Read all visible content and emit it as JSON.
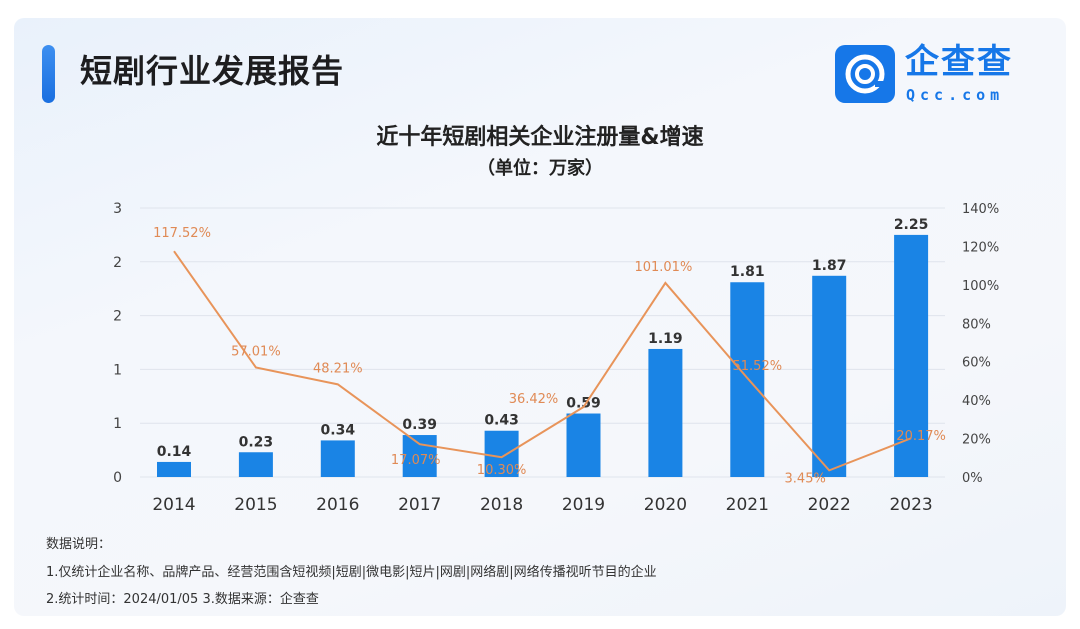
{
  "header": {
    "title": "短剧行业发展报告"
  },
  "logo": {
    "name": "企查查",
    "url": "Qcc.com"
  },
  "chart_data": {
    "type": "bar+line",
    "title": "近十年短剧相关企业注册量&增速",
    "subtitle": "（单位：万家）",
    "categories": [
      "2014",
      "2015",
      "2016",
      "2017",
      "2018",
      "2019",
      "2020",
      "2021",
      "2022",
      "2023"
    ],
    "series": [
      {
        "type": "bar",
        "axis": "left",
        "values": [
          0.14,
          0.23,
          0.34,
          0.39,
          0.43,
          0.59,
          1.19,
          1.81,
          1.87,
          2.25
        ],
        "color": "#1a84e5"
      },
      {
        "type": "line",
        "axis": "right",
        "values": [
          117.52,
          57.01,
          48.21,
          17.07,
          10.3,
          36.42,
          101.01,
          51.52,
          3.45,
          20.17
        ],
        "labels": [
          "117.52%",
          "57.01%",
          "48.21%",
          "17.07%",
          "10.30%",
          "36.42%",
          "101.01%",
          "51.52%",
          "3.45%",
          "20.17%"
        ],
        "color": "#e8945a"
      }
    ],
    "left_axis": {
      "ylim": [
        0,
        2.5
      ],
      "ticks": [
        0,
        0.5,
        1,
        1.5,
        2,
        2.5
      ],
      "tick_labels": [
        "0",
        "1",
        "1",
        "2",
        "2",
        "3"
      ]
    },
    "right_axis": {
      "ylim": [
        0,
        140
      ],
      "ticks": [
        0,
        20,
        40,
        60,
        80,
        100,
        120,
        140
      ],
      "tick_labels": [
        "0%",
        "20%",
        "40%",
        "60%",
        "80%",
        "100%",
        "120%",
        "140%"
      ]
    },
    "grid": true,
    "legend": "none"
  },
  "notes": {
    "heading": "数据说明：",
    "line1": "1.仅统计企业名称、品牌产品、经营范围含短视频|短剧|微电影|短片|网剧|网络剧|网络传播视听节目的企业",
    "line2": "2.统计时间：2024/01/05    3.数据来源：企查查"
  }
}
